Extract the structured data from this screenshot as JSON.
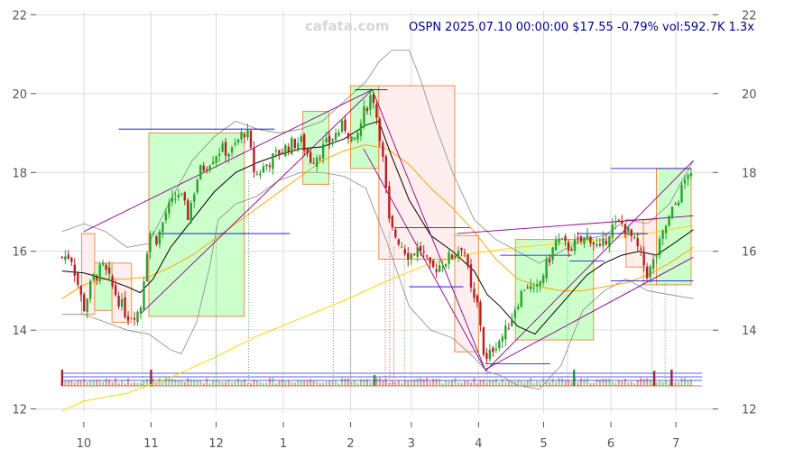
{
  "watermark": "cafata.com",
  "header": "OSPN 2025.07.10 00:00:00 $17.55 -0.79% vol:592.7K 1.3x",
  "colors": {
    "up": "#2ca02c",
    "down": "#b22222",
    "grid": "#dddddd",
    "title": "#00008b",
    "bull_box_fill": "#ccffcc",
    "bear_box_fill": "#ffeeee",
    "box_edge": "#e8914c",
    "ma_fast": "#000000",
    "ma_mid": "#ffa500",
    "ma_slow": "#ffd700",
    "band": "#888888",
    "trend": "#8b008b",
    "level": "#0000cd"
  },
  "chart_data": {
    "type": "candlestick",
    "ylim": [
      11.9,
      22.1
    ],
    "y_ticks": [
      12,
      14,
      16,
      18,
      20,
      22
    ],
    "x_ticks": [
      {
        "label": "10",
        "day": 0
      },
      {
        "label": "11",
        "day": 31
      },
      {
        "label": "12",
        "day": 61
      },
      {
        "label": "1",
        "day": 92
      },
      {
        "label": "2",
        "day": 123
      },
      {
        "label": "3",
        "day": 151
      },
      {
        "label": "4",
        "day": 182
      },
      {
        "label": "5",
        "day": 212
      },
      {
        "label": "6",
        "day": 243
      },
      {
        "label": "7",
        "day": 273
      }
    ],
    "xlim": [
      -22,
      290
    ],
    "close_path": [
      [
        -10,
        15.85
      ],
      [
        -6,
        15.9
      ],
      [
        0,
        14.55
      ],
      [
        4,
        15.3
      ],
      [
        9,
        15.6
      ],
      [
        14,
        15.0
      ],
      [
        20,
        14.35
      ],
      [
        26,
        14.5
      ],
      [
        30,
        16.5
      ],
      [
        34,
        16.3
      ],
      [
        38,
        17.0
      ],
      [
        44,
        17.5
      ],
      [
        48,
        16.9
      ],
      [
        53,
        18.0
      ],
      [
        58,
        18.3
      ],
      [
        63,
        18.6
      ],
      [
        68,
        18.5
      ],
      [
        72,
        18.9
      ],
      [
        75,
        19.1
      ],
      [
        79,
        17.9
      ],
      [
        84,
        18.2
      ],
      [
        90,
        18.5
      ],
      [
        95,
        18.7
      ],
      [
        100,
        18.8
      ],
      [
        105,
        18.3
      ],
      [
        110,
        18.6
      ],
      [
        115,
        18.9
      ],
      [
        120,
        19.2
      ],
      [
        125,
        18.7
      ],
      [
        129,
        19.5
      ],
      [
        133,
        20.05
      ],
      [
        137,
        18.8
      ],
      [
        141,
        16.6
      ],
      [
        145,
        16.3
      ],
      [
        150,
        15.9
      ],
      [
        155,
        16.1
      ],
      [
        160,
        15.5
      ],
      [
        165,
        15.7
      ],
      [
        170,
        15.9
      ],
      [
        175,
        16.2
      ],
      [
        179,
        14.8
      ],
      [
        182,
        14.6
      ],
      [
        185,
        13.1
      ],
      [
        189,
        13.6
      ],
      [
        194,
        13.9
      ],
      [
        199,
        14.6
      ],
      [
        204,
        15.2
      ],
      [
        208,
        14.9
      ],
      [
        213,
        15.6
      ],
      [
        218,
        16.3
      ],
      [
        223,
        16.1
      ],
      [
        228,
        16.2
      ],
      [
        233,
        16.4
      ],
      [
        238,
        16.0
      ],
      [
        243,
        16.6
      ],
      [
        248,
        16.7
      ],
      [
        252,
        16.4
      ],
      [
        256,
        16.0
      ],
      [
        260,
        15.4
      ],
      [
        264,
        15.9
      ],
      [
        268,
        16.6
      ],
      [
        272,
        17.1
      ],
      [
        276,
        17.6
      ],
      [
        279,
        18.1
      ],
      [
        281,
        17.55
      ]
    ],
    "ma_fast": [
      [
        -10,
        15.5
      ],
      [
        0,
        15.45
      ],
      [
        10,
        15.3
      ],
      [
        20,
        15.1
      ],
      [
        26,
        14.95
      ],
      [
        32,
        15.3
      ],
      [
        40,
        16.1
      ],
      [
        50,
        16.8
      ],
      [
        60,
        17.5
      ],
      [
        70,
        18.0
      ],
      [
        80,
        18.25
      ],
      [
        90,
        18.45
      ],
      [
        100,
        18.6
      ],
      [
        110,
        18.65
      ],
      [
        120,
        18.85
      ],
      [
        130,
        19.2
      ],
      [
        136,
        19.3
      ],
      [
        142,
        18.4
      ],
      [
        150,
        17.3
      ],
      [
        160,
        16.4
      ],
      [
        170,
        16.0
      ],
      [
        180,
        15.5
      ],
      [
        186,
        14.9
      ],
      [
        192,
        14.6
      ],
      [
        200,
        14.1
      ],
      [
        208,
        13.9
      ],
      [
        216,
        14.4
      ],
      [
        224,
        14.9
      ],
      [
        232,
        15.4
      ],
      [
        240,
        15.7
      ],
      [
        248,
        15.9
      ],
      [
        256,
        16.0
      ],
      [
        264,
        15.9
      ],
      [
        272,
        16.2
      ],
      [
        281,
        16.55
      ]
    ],
    "ma_mid": [
      [
        -10,
        14.8
      ],
      [
        0,
        15.15
      ],
      [
        10,
        15.3
      ],
      [
        20,
        15.3
      ],
      [
        30,
        15.35
      ],
      [
        40,
        15.6
      ],
      [
        50,
        15.9
      ],
      [
        60,
        16.3
      ],
      [
        70,
        16.7
      ],
      [
        80,
        17.1
      ],
      [
        90,
        17.5
      ],
      [
        100,
        17.9
      ],
      [
        110,
        18.3
      ],
      [
        120,
        18.55
      ],
      [
        130,
        18.7
      ],
      [
        140,
        18.6
      ],
      [
        150,
        18.2
      ],
      [
        160,
        17.6
      ],
      [
        170,
        17.1
      ],
      [
        180,
        16.5
      ],
      [
        190,
        15.8
      ],
      [
        200,
        15.3
      ],
      [
        210,
        15.1
      ],
      [
        220,
        15.0
      ],
      [
        230,
        15.0
      ],
      [
        240,
        15.1
      ],
      [
        250,
        15.2
      ],
      [
        260,
        15.4
      ],
      [
        270,
        15.7
      ],
      [
        281,
        16.1
      ]
    ],
    "ma_slow": [
      [
        -10,
        11.95
      ],
      [
        0,
        12.2
      ],
      [
        20,
        12.4
      ],
      [
        40,
        12.8
      ],
      [
        60,
        13.3
      ],
      [
        80,
        13.85
      ],
      [
        100,
        14.3
      ],
      [
        120,
        14.75
      ],
      [
        140,
        15.25
      ],
      [
        160,
        15.7
      ],
      [
        180,
        15.95
      ],
      [
        200,
        16.1
      ],
      [
        220,
        16.2
      ],
      [
        240,
        16.3
      ],
      [
        260,
        16.45
      ],
      [
        281,
        16.65
      ]
    ],
    "band_upper": [
      [
        -10,
        16.5
      ],
      [
        0,
        16.7
      ],
      [
        10,
        16.5
      ],
      [
        20,
        16.1
      ],
      [
        30,
        16.2
      ],
      [
        40,
        17.3
      ],
      [
        50,
        18.3
      ],
      [
        60,
        18.9
      ],
      [
        70,
        19.3
      ],
      [
        80,
        19.1
      ],
      [
        90,
        19.0
      ],
      [
        100,
        19.1
      ],
      [
        110,
        19.3
      ],
      [
        120,
        19.8
      ],
      [
        130,
        20.3
      ],
      [
        136,
        20.8
      ],
      [
        142,
        21.1
      ],
      [
        150,
        21.1
      ],
      [
        155,
        20.4
      ],
      [
        162,
        19.2
      ],
      [
        170,
        18.0
      ],
      [
        180,
        16.8
      ],
      [
        190,
        16.3
      ],
      [
        200,
        16.0
      ],
      [
        210,
        15.7
      ],
      [
        220,
        16.0
      ],
      [
        230,
        16.3
      ],
      [
        240,
        16.4
      ],
      [
        250,
        16.8
      ],
      [
        260,
        16.7
      ],
      [
        270,
        17.2
      ],
      [
        281,
        18.3
      ]
    ],
    "band_lower": [
      [
        -10,
        14.4
      ],
      [
        0,
        14.4
      ],
      [
        10,
        14.2
      ],
      [
        20,
        14.0
      ],
      [
        30,
        13.9
      ],
      [
        40,
        13.5
      ],
      [
        45,
        13.4
      ],
      [
        52,
        14.2
      ],
      [
        58,
        15.6
      ],
      [
        62,
        16.8
      ],
      [
        70,
        17.2
      ],
      [
        80,
        17.4
      ],
      [
        90,
        17.8
      ],
      [
        100,
        18.0
      ],
      [
        110,
        18.0
      ],
      [
        120,
        17.9
      ],
      [
        130,
        17.6
      ],
      [
        140,
        16.2
      ],
      [
        150,
        14.6
      ],
      [
        160,
        14.0
      ],
      [
        170,
        13.8
      ],
      [
        180,
        13.3
      ],
      [
        186,
        12.95
      ],
      [
        192,
        12.85
      ],
      [
        200,
        12.6
      ],
      [
        210,
        12.5
      ],
      [
        220,
        13.1
      ],
      [
        230,
        14.5
      ],
      [
        240,
        15.0
      ],
      [
        250,
        15.3
      ],
      [
        260,
        15.0
      ],
      [
        270,
        14.9
      ],
      [
        281,
        14.8
      ]
    ],
    "boxes": [
      {
        "x0": -1,
        "x1": 5,
        "y0": 14.4,
        "y1": 16.45,
        "kind": "bear"
      },
      {
        "x0": 5,
        "x1": 13,
        "y0": 14.5,
        "y1": 15.7,
        "kind": "bull"
      },
      {
        "x0": 13,
        "x1": 22,
        "y0": 14.2,
        "y1": 15.7,
        "kind": "bear"
      },
      {
        "x0": 30,
        "x1": 74,
        "y0": 14.35,
        "y1": 19.0,
        "kind": "bull"
      },
      {
        "x0": 101,
        "x1": 113,
        "y0": 17.7,
        "y1": 19.55,
        "kind": "bull"
      },
      {
        "x0": 123,
        "x1": 136,
        "y0": 18.1,
        "y1": 20.2,
        "kind": "bull"
      },
      {
        "x0": 136,
        "x1": 171,
        "y0": 15.8,
        "y1": 20.2,
        "kind": "bear"
      },
      {
        "x0": 171,
        "x1": 182,
        "y0": 13.45,
        "y1": 16.4,
        "kind": "bear"
      },
      {
        "x0": 199,
        "x1": 235,
        "y0": 13.75,
        "y1": 16.3,
        "kind": "bull"
      },
      {
        "x0": 250,
        "x1": 258,
        "y0": 15.6,
        "y1": 16.8,
        "kind": "bear"
      },
      {
        "x0": 258,
        "x1": 274,
        "y0": 15.15,
        "y1": 16.8,
        "kind": "bear"
      },
      {
        "x0": 264,
        "x1": 280,
        "y0": 15.15,
        "y1": 18.1,
        "kind": "bull"
      }
    ],
    "trend_lines": [
      {
        "x0": 0,
        "y0": 16.5,
        "x1": 133,
        "y1": 20.1
      },
      {
        "x0": 26,
        "y0": 14.4,
        "x1": 133,
        "y1": 20.1
      },
      {
        "x0": 129,
        "y0": 18.6,
        "x1": 185,
        "y1": 13.0
      },
      {
        "x0": 133,
        "y0": 20.1,
        "x1": 185,
        "y1": 13.0
      },
      {
        "x0": 185,
        "y0": 13.0,
        "x1": 281,
        "y1": 15.85
      },
      {
        "x0": 185,
        "y0": 12.95,
        "x1": 281,
        "y1": 18.3
      },
      {
        "x0": 172,
        "y0": 16.45,
        "x1": 281,
        "y1": 16.9
      }
    ],
    "level_lines": [
      {
        "x0": 34,
        "x1": 95,
        "y": 16.45
      },
      {
        "x0": 16,
        "x1": 88,
        "y": 19.1
      },
      {
        "x0": 125,
        "x1": 140,
        "y": 20.1
      },
      {
        "x0": 143,
        "x1": 178,
        "y": 16.6
      },
      {
        "x0": 150,
        "x1": 175,
        "y": 15.1
      },
      {
        "x0": 185,
        "x1": 215,
        "y": 13.15
      },
      {
        "x0": 192,
        "x1": 225,
        "y": 15.9
      },
      {
        "x0": 224,
        "x1": 240,
        "y": 15.75
      },
      {
        "x0": 228,
        "x1": 260,
        "y": 16.45
      },
      {
        "x0": 243,
        "x1": 280,
        "y": 18.1
      },
      {
        "x0": 243,
        "x1": 281,
        "y": 15.25
      }
    ],
    "signal_lines": [
      {
        "x": 27,
        "from": 14.35,
        "color": "#2ca02c"
      },
      {
        "x": 61,
        "from": 16.6,
        "color": "#2ca02c"
      },
      {
        "x": 76,
        "from": 17.8,
        "color": "#2ca02c"
      },
      {
        "x": 115,
        "from": 17.8,
        "color": "#2ca02c"
      },
      {
        "x": 123,
        "from": 17.6,
        "color": "#2ca02c"
      },
      {
        "x": 139,
        "from": 15.8,
        "color": "#b22222"
      },
      {
        "x": 141,
        "from": 16.5,
        "color": "#b22222"
      },
      {
        "x": 143,
        "from": 16.1,
        "color": "#b22222"
      },
      {
        "x": 148,
        "from": 16.0,
        "color": "#2ca02c"
      },
      {
        "x": 186,
        "from": 13.3,
        "color": "#2ca02c"
      },
      {
        "x": 223,
        "from": 15.8,
        "color": "#2ca02c"
      },
      {
        "x": 262,
        "from": 15.3,
        "color": "#2ca02c"
      },
      {
        "x": 268,
        "from": 15.2,
        "color": "#2ca02c"
      }
    ],
    "volume_spikes": [
      {
        "x": -10,
        "h": 0.45,
        "up": false
      },
      {
        "x": 31,
        "h": 0.45,
        "up": false
      },
      {
        "x": 134,
        "h": 0.3,
        "up": true
      },
      {
        "x": 226,
        "h": 0.45,
        "up": true
      },
      {
        "x": 263,
        "h": 0.42,
        "up": false
      },
      {
        "x": 271,
        "h": 0.45,
        "up": false
      }
    ]
  }
}
